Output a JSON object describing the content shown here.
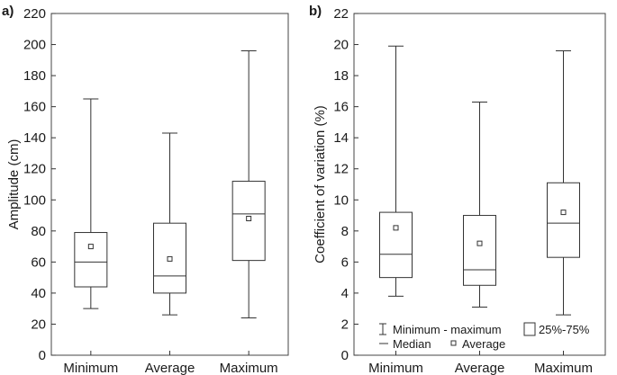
{
  "chart_data": [
    {
      "type": "box",
      "panel": "a)",
      "ylabel": "Amplitude (cm)",
      "ylim": [
        0,
        220
      ],
      "yticks": [
        0,
        20,
        40,
        60,
        80,
        100,
        120,
        140,
        160,
        180,
        200,
        220
      ],
      "categories": [
        "Minimum",
        "Average",
        "Maximum"
      ],
      "boxes": [
        {
          "min": 30,
          "q1": 44,
          "median": 60,
          "q3": 79,
          "max": 165,
          "mean": 70
        },
        {
          "min": 26,
          "q1": 40,
          "median": 51,
          "q3": 85,
          "max": 143,
          "mean": 62
        },
        {
          "min": 24,
          "q1": 61,
          "median": 91,
          "q3": 112,
          "max": 196,
          "mean": 88
        }
      ]
    },
    {
      "type": "box",
      "panel": "b)",
      "ylabel": "Coefficient of variation (%)",
      "ylim": [
        0,
        22
      ],
      "yticks": [
        0,
        2,
        4,
        6,
        8,
        10,
        12,
        14,
        16,
        18,
        20,
        22
      ],
      "categories": [
        "Minimum",
        "Average",
        "Maximum"
      ],
      "boxes": [
        {
          "min": 3.8,
          "q1": 5.0,
          "median": 6.5,
          "q3": 9.2,
          "max": 19.9,
          "mean": 8.2
        },
        {
          "min": 3.1,
          "q1": 4.5,
          "median": 5.5,
          "q3": 9.0,
          "max": 16.3,
          "mean": 7.2
        },
        {
          "min": 2.6,
          "q1": 6.3,
          "median": 8.5,
          "q3": 11.1,
          "max": 19.6,
          "mean": 9.2
        }
      ],
      "legend": {
        "items": [
          "Minimum - maximum",
          "25%-75%",
          "Median",
          "Average"
        ],
        "placement": "bottom-right"
      }
    }
  ]
}
